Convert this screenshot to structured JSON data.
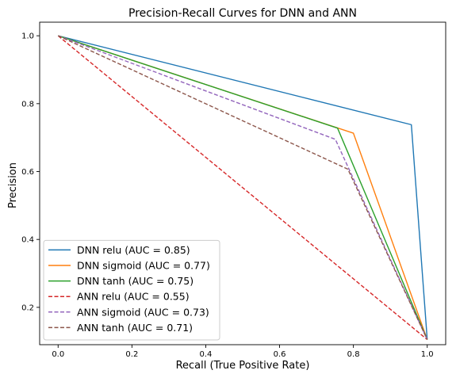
{
  "chart_data": {
    "type": "line",
    "title": "Precision-Recall Curves for DNN and ANN",
    "xlabel": "Recall (True Positive Rate)",
    "ylabel": "Precision",
    "xlim": [
      -0.05,
      1.05
    ],
    "ylim": [
      0.09,
      1.04
    ],
    "xticks": [
      "0.0",
      "0.2",
      "0.4",
      "0.6",
      "0.8",
      "1.0"
    ],
    "yticks": [
      "0.2",
      "0.4",
      "0.6",
      "0.8",
      "1.0"
    ],
    "grid": false,
    "legend_position": "lower-left",
    "series": [
      {
        "name": "DNN relu (AUC = 0.85)",
        "color": "#1f77b4",
        "dash": "solid",
        "x": [
          0.0,
          0.957,
          1.0
        ],
        "y": [
          1.0,
          0.738,
          0.105
        ]
      },
      {
        "name": "DNN sigmoid (AUC = 0.77)",
        "color": "#ff7f0e",
        "dash": "solid",
        "x": [
          0.0,
          0.8,
          1.0
        ],
        "y": [
          1.0,
          0.713,
          0.105
        ]
      },
      {
        "name": "DNN tanh (AUC = 0.75)",
        "color": "#2ca02c",
        "dash": "solid",
        "x": [
          0.0,
          0.757,
          1.0
        ],
        "y": [
          1.0,
          0.728,
          0.105
        ]
      },
      {
        "name": "ANN relu (AUC = 0.55)",
        "color": "#d62728",
        "dash": "dashed",
        "x": [
          0.0,
          1.0
        ],
        "y": [
          1.0,
          0.105
        ]
      },
      {
        "name": "ANN sigmoid (AUC = 0.73)",
        "color": "#9467bd",
        "dash": "dashed",
        "x": [
          0.0,
          0.751,
          1.0
        ],
        "y": [
          1.0,
          0.695,
          0.105
        ]
      },
      {
        "name": "ANN tanh (AUC = 0.71)",
        "color": "#8c564b",
        "dash": "dashed",
        "x": [
          0.0,
          0.785,
          1.0
        ],
        "y": [
          1.0,
          0.607,
          0.105
        ]
      }
    ]
  }
}
